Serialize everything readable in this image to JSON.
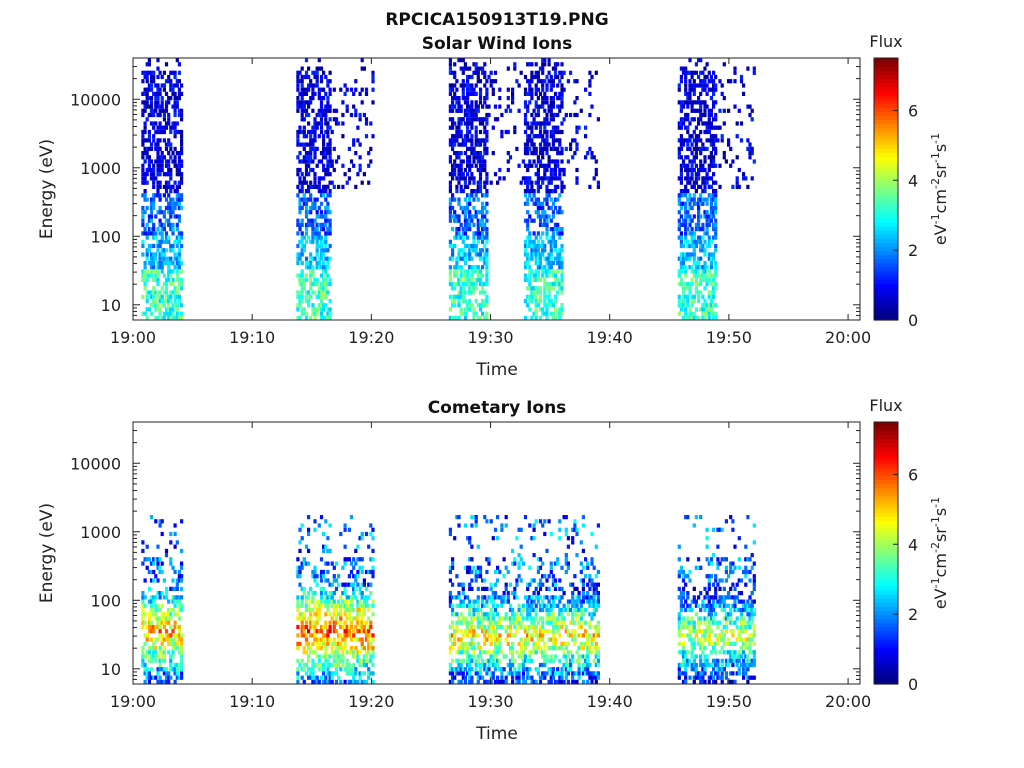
{
  "figure": {
    "title": "RPCICA150913T19.PNG"
  },
  "colorbar": {
    "title": "Flux",
    "label_main": "eV",
    "label_parts": [
      "-1",
      "cm",
      "-2",
      "sr",
      "-1",
      "s",
      "-1"
    ],
    "ticks": [
      "0",
      "2",
      "4",
      "6"
    ],
    "range": [
      0,
      7.5
    ],
    "colormap": "jet"
  },
  "axes_common": {
    "xlabel": "Time",
    "ylabel": "Energy (eV)",
    "xticks": [
      "19:00",
      "19:10",
      "19:20",
      "19:30",
      "19:40",
      "19:50",
      "20:00"
    ],
    "yticks": [
      "10",
      "100",
      "1000",
      "10000"
    ],
    "y_scale": "log",
    "y_range_eV": [
      6,
      40000
    ],
    "x_range_min": [
      0,
      61
    ]
  },
  "chart_data": [
    {
      "type": "heatmap",
      "title": "Solar Wind Ions",
      "x_unit": "time (HH:MM)",
      "y_unit": "eV",
      "bursts": [
        {
          "start": "19:00.7",
          "end": "19:04.0",
          "peak_flux": 4.5,
          "energy_range_eV": [
            6,
            40000
          ]
        },
        {
          "start": "19:13.7",
          "end": "19:20.0",
          "peak_flux": 4.5,
          "energy_range_eV": [
            6,
            40000
          ]
        },
        {
          "start": "19:26.5",
          "end": "19:39.0",
          "peak_flux": 4.0,
          "energy_range_eV": [
            6,
            40000
          ]
        },
        {
          "start": "19:45.7",
          "end": "19:52.0",
          "peak_flux": 4.0,
          "energy_range_eV": [
            6,
            40000
          ]
        }
      ]
    },
    {
      "type": "heatmap",
      "title": "Cometary Ions",
      "x_unit": "time (HH:MM)",
      "y_unit": "eV",
      "bursts": [
        {
          "start": "19:00.7",
          "end": "19:04.0",
          "peak_flux": 6.5,
          "peak_energy_eV": 35
        },
        {
          "start": "19:13.7",
          "end": "19:20.0",
          "peak_flux": 7.0,
          "peak_energy_eV": 35
        },
        {
          "start": "19:26.5",
          "end": "19:39.0",
          "peak_flux": 6.0,
          "peak_energy_eV": 30
        },
        {
          "start": "19:45.7",
          "end": "19:52.0",
          "peak_flux": 5.5,
          "peak_energy_eV": 30
        }
      ]
    }
  ]
}
